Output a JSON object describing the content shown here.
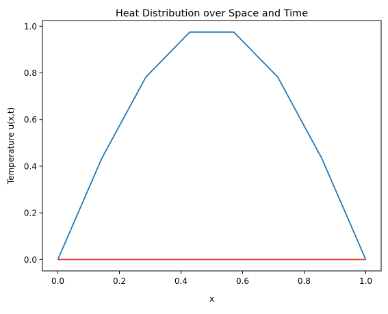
{
  "chart_data": {
    "type": "line",
    "title": "Heat Distribution over Space and Time",
    "xlabel": "x",
    "ylabel": "Temperature u(x,t)",
    "xlim": [
      -0.05,
      1.05
    ],
    "ylim": [
      -0.04878,
      1.02445
    ],
    "xticks": [
      0.0,
      0.2,
      0.4,
      0.6,
      0.8,
      1.0
    ],
    "xtick_labels": [
      "0.0",
      "0.2",
      "0.4",
      "0.6",
      "0.8",
      "1.0"
    ],
    "yticks": [
      0.0,
      0.2,
      0.4,
      0.6,
      0.8,
      1.0
    ],
    "ytick_labels": [
      "0.0",
      "0.2",
      "0.4",
      "0.6",
      "0.8",
      "1.0"
    ],
    "grid": false,
    "legend": null,
    "series": [
      {
        "color": "#1f77b4",
        "x": [
          0.0,
          0.142857,
          0.285714,
          0.428571,
          0.571429,
          0.714286,
          0.857143,
          1.0
        ],
        "y": [
          0.0,
          0.4339,
          0.7818,
          0.9749,
          0.9749,
          0.7818,
          0.4339,
          0.0
        ]
      },
      {
        "color": "#e8291c",
        "x": [
          0.0,
          1.0
        ],
        "y": [
          0.0,
          0.0
        ]
      }
    ]
  }
}
